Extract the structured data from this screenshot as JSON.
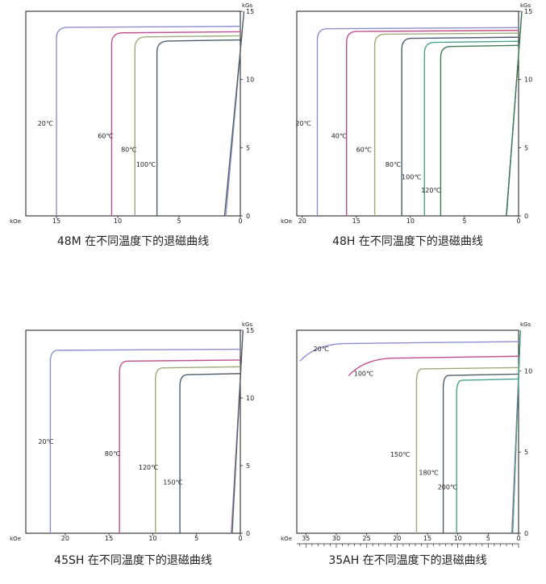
{
  "chart_data": [
    {
      "type": "line",
      "title": "48M 在不同温度下的退磁曲线",
      "x_unit": "kOe",
      "y_unit": "kGs",
      "xlim": [
        17.5,
        0
      ],
      "ylim": [
        0,
        15
      ],
      "xticks": [
        15,
        10,
        5,
        0
      ],
      "yticks": [
        0,
        5,
        10,
        15
      ],
      "x_minor_ticks": false,
      "grid": false,
      "series": [
        {
          "name": "20℃",
          "color": "#8b8fd0",
          "br": 13.9,
          "hk": 15.0,
          "k": 11.8,
          "label_at": [
            15.9,
            6.6
          ]
        },
        {
          "name": "60℃",
          "color": "#c0508f",
          "br": 13.5,
          "hk": 10.5,
          "k": 10.6,
          "label_at": [
            11.0,
            5.7
          ]
        },
        {
          "name": "80℃",
          "color": "#9cab78",
          "br": 13.2,
          "hk": 8.6,
          "k": 10.3,
          "label_at": [
            9.1,
            4.7
          ]
        },
        {
          "name": "100℃",
          "color": "#4d5e6a",
          "br": 12.9,
          "hk": 6.8,
          "k": 10.0,
          "label_at": [
            7.7,
            3.6
          ]
        }
      ]
    },
    {
      "type": "line",
      "title": "48H 在不同温度下的退磁曲线",
      "x_unit": "kOe",
      "y_unit": "kGs",
      "xlim": [
        20.5,
        0
      ],
      "ylim": [
        0,
        15
      ],
      "xticks": [
        20,
        15,
        10,
        5,
        0
      ],
      "yticks": [
        0,
        5,
        10,
        15
      ],
      "x_minor_ticks": false,
      "grid": false,
      "series": [
        {
          "name": "20℃",
          "color": "#8b8fd0",
          "br": 13.8,
          "hk": 18.6,
          "k": 12.5,
          "label_at": [
            19.9,
            6.6
          ]
        },
        {
          "name": "40℃",
          "color": "#c0508f",
          "br": 13.6,
          "hk": 15.9,
          "k": 12.2,
          "label_at": [
            16.6,
            5.7
          ]
        },
        {
          "name": "60℃",
          "color": "#9cab78",
          "br": 13.4,
          "hk": 13.3,
          "k": 11.9,
          "label_at": [
            14.3,
            4.7
          ]
        },
        {
          "name": "80℃",
          "color": "#4d5e6a",
          "br": 13.1,
          "hk": 10.8,
          "k": 11.6,
          "label_at": [
            11.6,
            3.6
          ]
        },
        {
          "name": "100℃",
          "color": "#4aa38a",
          "br": 12.8,
          "hk": 8.7,
          "k": 11.3,
          "label_at": [
            9.9,
            2.7
          ]
        },
        {
          "name": "120℃",
          "color": "#3e7a55",
          "br": 12.5,
          "hk": 7.2,
          "k": 11.0,
          "label_at": [
            8.1,
            1.7
          ]
        }
      ]
    },
    {
      "type": "line",
      "title": "45SH 在不同温度下的退磁曲线",
      "x_unit": "kOe",
      "y_unit": "kGs",
      "xlim": [
        24.5,
        0
      ],
      "ylim": [
        0,
        15
      ],
      "xticks": [
        20,
        15,
        10,
        5,
        0
      ],
      "yticks": [
        0,
        5,
        10,
        15
      ],
      "x_minor_ticks": false,
      "grid": false,
      "series": [
        {
          "name": "20℃",
          "color": "#8b8fd0",
          "br": 13.6,
          "hk": 21.7,
          "k": 13.0,
          "label_at": [
            22.2,
            6.6
          ]
        },
        {
          "name": "80℃",
          "color": "#c0508f",
          "br": 12.8,
          "hk": 13.8,
          "k": 13.0,
          "label_at": [
            14.6,
            5.7
          ]
        },
        {
          "name": "120℃",
          "color": "#9cab78",
          "br": 12.3,
          "hk": 9.7,
          "k": 12.9,
          "label_at": [
            10.5,
            4.7
          ]
        },
        {
          "name": "150℃",
          "color": "#4d5e6a",
          "br": 11.8,
          "hk": 6.9,
          "k": 12.7,
          "label_at": [
            7.7,
            3.6
          ]
        }
      ]
    },
    {
      "type": "line",
      "title": "35AH 在不同温度下的退磁曲线",
      "x_unit": "kOe",
      "y_unit": "kGs",
      "xlim": [
        36.5,
        0
      ],
      "ylim": [
        0,
        12.5
      ],
      "xticks": [
        35,
        30,
        25,
        20,
        15,
        10,
        5,
        0
      ],
      "yticks": [
        0,
        5,
        10
      ],
      "x_minor_ticks": true,
      "grid": false,
      "series": [
        {
          "name": "20℃",
          "color": "#8b8fd0",
          "br": 11.8,
          "hk": 36.0,
          "k": 10.5,
          "rounded": true,
          "label_at": [
            32.5,
            11.2
          ]
        },
        {
          "name": "100℃",
          "color": "#c0508f",
          "br": 10.9,
          "hk": 28.0,
          "k": 10.4,
          "rounded": true,
          "label_at": [
            25.5,
            9.7
          ]
        },
        {
          "name": "150℃",
          "color": "#9cab78",
          "br": 10.2,
          "hk": 16.8,
          "k": 10.3,
          "label_at": [
            19.5,
            4.7
          ]
        },
        {
          "name": "180℃",
          "color": "#4d5e6a",
          "br": 9.8,
          "hk": 12.4,
          "k": 10.1,
          "label_at": [
            14.8,
            3.6
          ]
        },
        {
          "name": "200℃",
          "color": "#4aa38a",
          "br": 9.5,
          "hk": 10.2,
          "k": 9.9,
          "label_at": [
            11.7,
            2.7
          ]
        }
      ]
    }
  ]
}
